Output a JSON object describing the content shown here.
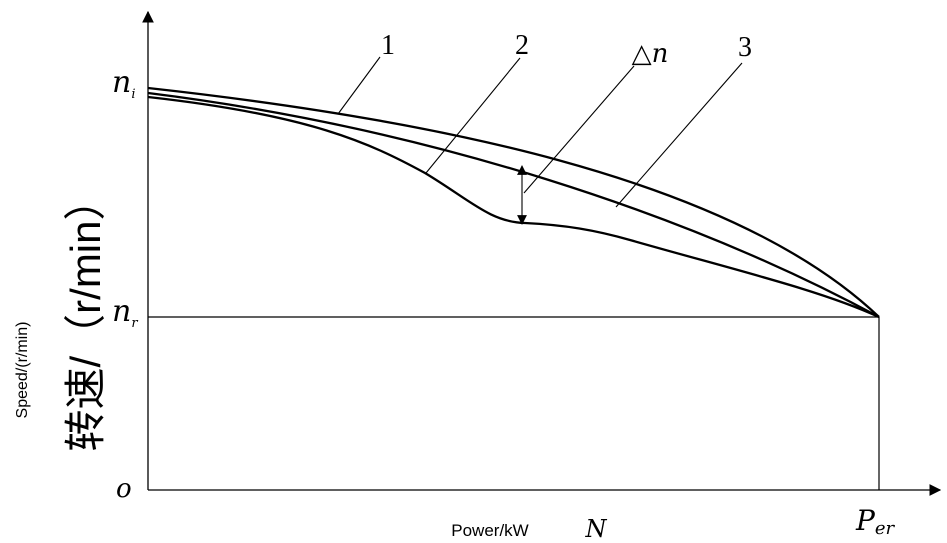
{
  "chart_data": {
    "type": "line",
    "title": "",
    "xlabel": "Power/kW",
    "xlabel_symbol": "N",
    "ylabel": "Speed/(r/min)",
    "ylabel_cn": "转速/（r/min）",
    "origin_label": "o",
    "y_ticks": [
      {
        "label": "n",
        "sub": "i"
      },
      {
        "label": "n",
        "sub": "r"
      }
    ],
    "x_ticks": [
      {
        "label": "P",
        "sub": "er"
      }
    ],
    "series": [
      {
        "name": "1",
        "x": [
          0,
          0.2,
          0.4,
          0.6,
          0.8,
          1.0
        ],
        "y": [
          1.0,
          0.97,
          0.89,
          0.75,
          0.52,
          0.0
        ]
      },
      {
        "name": "2",
        "x": [
          0,
          0.2,
          0.4,
          0.6,
          0.8,
          1.0
        ],
        "y": [
          0.97,
          0.88,
          0.7,
          0.49,
          0.25,
          0.0
        ]
      },
      {
        "name": "3",
        "x": [
          0,
          0.2,
          0.35,
          0.5,
          0.6,
          0.8,
          1.0
        ],
        "y": [
          0.95,
          0.83,
          0.64,
          0.42,
          0.37,
          0.2,
          0.0
        ]
      }
    ],
    "annotation": {
      "label": "△n"
    },
    "grid": false,
    "legend": "none"
  }
}
